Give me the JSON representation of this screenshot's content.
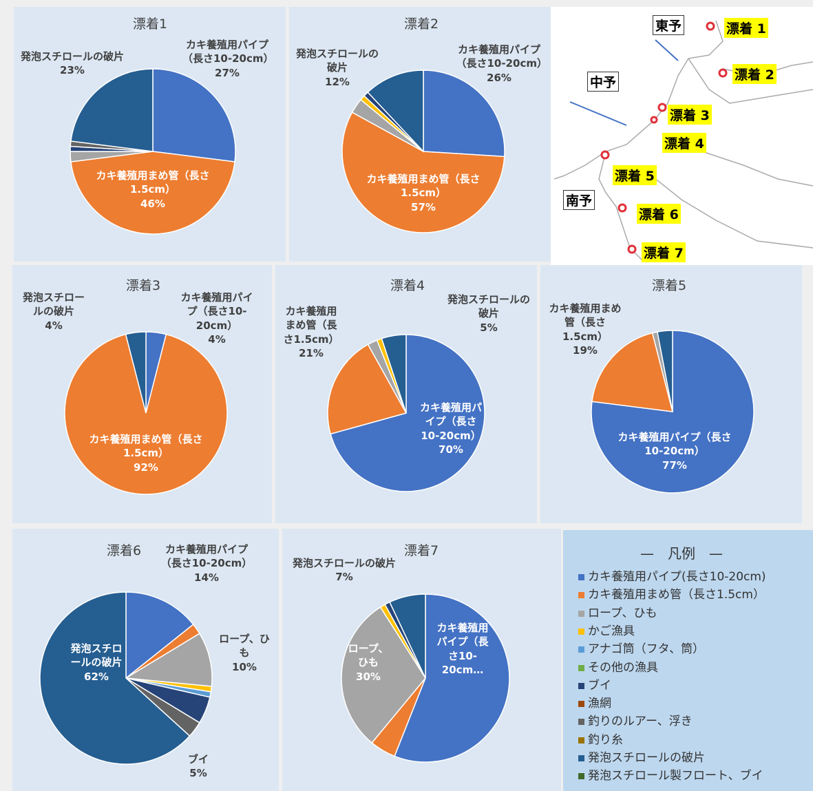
{
  "chart_data": [
    {
      "type": "pie",
      "title": "漂着1",
      "categories": [
        "カキ養殖用パイプ（長さ10-20cm）",
        "カキ養殖用まめ管（長さ1.5cm）",
        null,
        null,
        null,
        "発泡スチロールの破片"
      ],
      "values": [
        27,
        46,
        2,
        1,
        1,
        23
      ],
      "value_labels": [
        "27%",
        "46%",
        null,
        null,
        null,
        "23%"
      ],
      "colors": [
        "#4472c4",
        "#ed7d31",
        "#a5a5a5",
        "#264478",
        "#636363",
        "#255e91"
      ]
    },
    {
      "type": "pie",
      "title": "漂着2",
      "categories": [
        "カキ養殖用パイプ（長さ10-20cm）",
        "カキ養殖用まめ管（長さ1.5cm）",
        null,
        null,
        null,
        "発泡スチロールの破片"
      ],
      "values": [
        26,
        57,
        3,
        1,
        1,
        12
      ],
      "value_labels": [
        "26%",
        "57%",
        null,
        null,
        null,
        "12%"
      ],
      "colors": [
        "#4472c4",
        "#ed7d31",
        "#a5a5a5",
        "#ffc000",
        "#264478",
        "#255e91"
      ]
    },
    {
      "type": "pie",
      "title": "漂着3",
      "categories": [
        "カキ養殖用パイプ（長さ10-20cm）",
        "カキ養殖用まめ管（長さ1.5cm）",
        "発泡スチロールの破片"
      ],
      "values": [
        4,
        92,
        4
      ],
      "value_labels": [
        "4%",
        "92%",
        "4%"
      ],
      "colors": [
        "#4472c4",
        "#ed7d31",
        "#255e91"
      ]
    },
    {
      "type": "pie",
      "title": "漂着4",
      "categories": [
        "カキ養殖用パイプ（長さ10-20cm）",
        "カキ養殖用まめ管（長さ1.5cm）",
        null,
        null,
        "発泡スチロールの破片"
      ],
      "values": [
        70,
        21,
        2,
        1,
        5
      ],
      "value_labels": [
        "70%",
        "21%",
        null,
        null,
        "5%"
      ],
      "colors": [
        "#4472c4",
        "#ed7d31",
        "#a5a5a5",
        "#ffc000",
        "#255e91"
      ]
    },
    {
      "type": "pie",
      "title": "漂着5",
      "categories": [
        "カキ養殖用パイプ（長さ10-20cm）",
        "カキ養殖用まめ管（長さ1.5cm）",
        null,
        null
      ],
      "values": [
        77,
        19,
        1,
        3
      ],
      "value_labels": [
        "77%",
        "19%",
        null,
        null
      ],
      "colors": [
        "#4472c4",
        "#ed7d31",
        "#a5a5a5",
        "#255e91"
      ]
    },
    {
      "type": "pie",
      "title": "漂着6",
      "categories": [
        "カキ養殖用パイプ（長さ10-20cm）",
        null,
        "ロープ、ひも",
        null,
        null,
        "ブイ",
        null,
        "発泡スチロールの破片"
      ],
      "values": [
        14,
        2,
        10,
        1,
        1,
        5,
        3,
        62
      ],
      "value_labels": [
        "14%",
        null,
        "10%",
        null,
        null,
        "5%",
        null,
        "62%"
      ],
      "colors": [
        "#4472c4",
        "#ed7d31",
        "#a5a5a5",
        "#ffc000",
        "#5b9bd5",
        "#264478",
        "#636363",
        "#255e91"
      ]
    },
    {
      "type": "pie",
      "title": "漂着7",
      "categories": [
        "カキ養殖用パイプ（長さ10-20cm…",
        null,
        "ロープ、ひも",
        null,
        null,
        "発泡スチロールの破片"
      ],
      "values": [
        56,
        5,
        30,
        1,
        1,
        7
      ],
      "value_labels": [
        null,
        null,
        "30%",
        null,
        null,
        "7%"
      ],
      "colors": [
        "#4472c4",
        "#ed7d31",
        "#a5a5a5",
        "#ffc000",
        "#264478",
        "#255e91"
      ]
    }
  ],
  "map": {
    "regions": [
      "東予",
      "中予",
      "南予"
    ],
    "sites": [
      "漂着 1",
      "漂着 2",
      "漂着 3",
      "漂着 4",
      "漂着 5",
      "漂着 6",
      "漂着 7"
    ]
  },
  "legend": {
    "title": "—　凡例　—",
    "items": [
      {
        "name": "カキ養殖用パイプ(長さ10-20cm)",
        "color": "#4472c4"
      },
      {
        "name": "カキ養殖用まめ管（長さ1.5cm）",
        "color": "#ed7d31"
      },
      {
        "name": "ロープ、ひも",
        "color": "#a5a5a5"
      },
      {
        "name": "かご漁具",
        "color": "#ffc000"
      },
      {
        "name": "アナゴ筒（フタ、筒）",
        "color": "#5b9bd5"
      },
      {
        "name": "その他の漁具",
        "color": "#70ad47"
      },
      {
        "name": "ブイ",
        "color": "#264478"
      },
      {
        "name": "漁網",
        "color": "#9e480e"
      },
      {
        "name": "釣りのルアー、浮き",
        "color": "#636363"
      },
      {
        "name": "釣り糸",
        "color": "#997300"
      },
      {
        "name": "発泡スチロールの破片",
        "color": "#255e91"
      },
      {
        "name": "発泡スチロール製フロート、ブイ",
        "color": "#43682b"
      }
    ]
  }
}
